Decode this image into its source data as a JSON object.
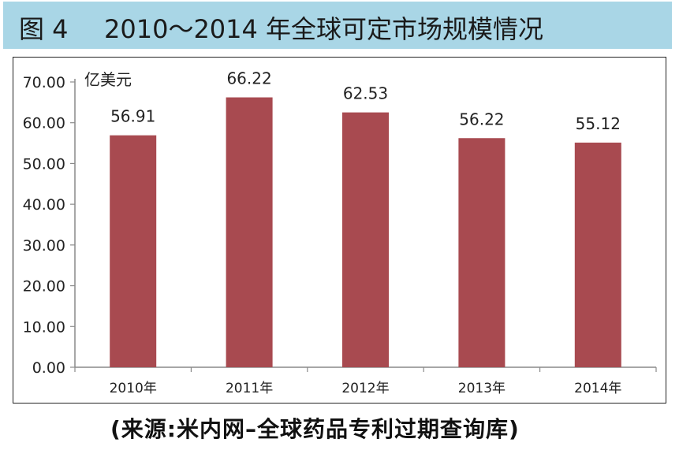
{
  "figure": {
    "label": "图 4",
    "title": "2010～2014 年全球可定市场规模情况",
    "source": "(来源:米内网–全球药品专利过期查询库)"
  },
  "colors": {
    "bar": "#a84a50",
    "title_bg": "#a9d6e6"
  },
  "chart_data": {
    "type": "bar",
    "categories": [
      "2010年",
      "2011年",
      "2012年",
      "2013年",
      "2014年"
    ],
    "values": [
      56.91,
      66.22,
      62.53,
      56.22,
      55.12
    ],
    "value_labels": [
      "56.91",
      "66.22",
      "62.53",
      "56.22",
      "55.12"
    ],
    "ylabel": "亿美元",
    "ylim": [
      0,
      70
    ],
    "yticks": [
      0,
      10,
      20,
      30,
      40,
      50,
      60,
      70
    ],
    "ytick_labels": [
      "0.00",
      "10.00",
      "20.00",
      "30.00",
      "40.00",
      "50.00",
      "60.00",
      "70.00"
    ],
    "grid": false,
    "legend": "none"
  }
}
